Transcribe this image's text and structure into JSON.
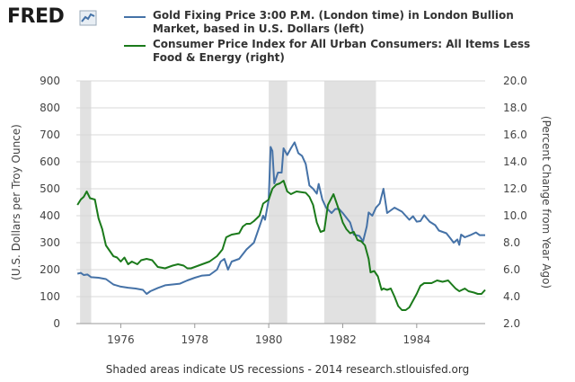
{
  "logo": {
    "text": "FRED",
    "icon": "chart-line-icon"
  },
  "footer": {
    "text": "Shaded areas indicate US recessions - 2014 research.stlouisfed.org"
  },
  "colors": {
    "gold": "#4572a7",
    "cpi": "#1b7a1b",
    "recession": "#e1e1e1",
    "grid": "#d8d8d8"
  },
  "chart_data": {
    "type": "line",
    "title": "",
    "xlabel": "",
    "x_ticks": [
      1976,
      1978,
      1980,
      1982,
      1984
    ],
    "xlim": [
      1974.8,
      1985.85
    ],
    "left_axis": {
      "label": "(U.S. Dollars per Troy Ounce)",
      "ylim": [
        0,
        900
      ],
      "ticks": [
        "0",
        "100",
        "200",
        "300",
        "400",
        "500",
        "600",
        "700",
        "800",
        "900"
      ]
    },
    "right_axis": {
      "label": "(Percent Change from Year Ago)",
      "ylim": [
        2.0,
        20.0
      ],
      "ticks": [
        "2.0",
        "4.0",
        "6.0",
        "8.0",
        "10.0",
        "12.0",
        "14.0",
        "16.0",
        "18.0",
        "20.0"
      ]
    },
    "grid": true,
    "legend_position": "top",
    "recessions": [
      [
        1974.9,
        1975.2
      ],
      [
        1980.0,
        1980.5
      ],
      [
        1981.5,
        1982.9
      ]
    ],
    "series": [
      {
        "name": "Gold Fixing Price 3:00 P.M. (London time) in London Bullion Market, based in U.S. Dollars (left)",
        "axis": "left",
        "color": "#4572a7",
        "points": [
          [
            1974.83,
            185
          ],
          [
            1974.92,
            188
          ],
          [
            1975.0,
            180
          ],
          [
            1975.1,
            182
          ],
          [
            1975.2,
            172
          ],
          [
            1975.4,
            170
          ],
          [
            1975.6,
            165
          ],
          [
            1975.8,
            145
          ],
          [
            1976.0,
            137
          ],
          [
            1976.2,
            133
          ],
          [
            1976.4,
            130
          ],
          [
            1976.6,
            125
          ],
          [
            1976.7,
            110
          ],
          [
            1976.8,
            120
          ],
          [
            1977.0,
            132
          ],
          [
            1977.2,
            142
          ],
          [
            1977.4,
            145
          ],
          [
            1977.6,
            148
          ],
          [
            1977.8,
            160
          ],
          [
            1978.0,
            170
          ],
          [
            1978.2,
            178
          ],
          [
            1978.4,
            180
          ],
          [
            1978.6,
            200
          ],
          [
            1978.7,
            230
          ],
          [
            1978.8,
            240
          ],
          [
            1978.9,
            200
          ],
          [
            1979.0,
            230
          ],
          [
            1979.2,
            240
          ],
          [
            1979.4,
            275
          ],
          [
            1979.6,
            300
          ],
          [
            1979.75,
            360
          ],
          [
            1979.85,
            400
          ],
          [
            1979.9,
            385
          ],
          [
            1980.0,
            460
          ],
          [
            1980.05,
            655
          ],
          [
            1980.1,
            640
          ],
          [
            1980.15,
            520
          ],
          [
            1980.25,
            560
          ],
          [
            1980.35,
            560
          ],
          [
            1980.4,
            650
          ],
          [
            1980.5,
            625
          ],
          [
            1980.6,
            650
          ],
          [
            1980.7,
            672
          ],
          [
            1980.8,
            632
          ],
          [
            1980.9,
            622
          ],
          [
            1981.0,
            592
          ],
          [
            1981.1,
            512
          ],
          [
            1981.2,
            500
          ],
          [
            1981.3,
            482
          ],
          [
            1981.35,
            518
          ],
          [
            1981.45,
            460
          ],
          [
            1981.55,
            430
          ],
          [
            1981.7,
            410
          ],
          [
            1981.8,
            425
          ],
          [
            1981.9,
            425
          ],
          [
            1982.0,
            410
          ],
          [
            1982.2,
            375
          ],
          [
            1982.3,
            330
          ],
          [
            1982.45,
            325
          ],
          [
            1982.55,
            305
          ],
          [
            1982.65,
            360
          ],
          [
            1982.7,
            412
          ],
          [
            1982.8,
            400
          ],
          [
            1982.9,
            430
          ],
          [
            1983.0,
            445
          ],
          [
            1983.1,
            500
          ],
          [
            1983.2,
            410
          ],
          [
            1983.4,
            430
          ],
          [
            1983.6,
            415
          ],
          [
            1983.8,
            385
          ],
          [
            1983.9,
            398
          ],
          [
            1984.0,
            378
          ],
          [
            1984.1,
            380
          ],
          [
            1984.2,
            402
          ],
          [
            1984.35,
            378
          ],
          [
            1984.5,
            365
          ],
          [
            1984.6,
            345
          ],
          [
            1984.8,
            335
          ],
          [
            1984.9,
            318
          ],
          [
            1985.0,
            300
          ],
          [
            1985.1,
            312
          ],
          [
            1985.15,
            292
          ],
          [
            1985.2,
            330
          ],
          [
            1985.3,
            320
          ],
          [
            1985.45,
            328
          ],
          [
            1985.6,
            338
          ],
          [
            1985.7,
            328
          ],
          [
            1985.85,
            328
          ]
        ]
      },
      {
        "name": "Consumer Price Index for All Urban Consumers: All Items Less Food & Energy (right)",
        "axis": "right",
        "color": "#1b7a1b",
        "points": [
          [
            1974.83,
            10.8
          ],
          [
            1974.92,
            11.2
          ],
          [
            1975.0,
            11.4
          ],
          [
            1975.08,
            11.8
          ],
          [
            1975.17,
            11.3
          ],
          [
            1975.3,
            11.2
          ],
          [
            1975.4,
            9.8
          ],
          [
            1975.5,
            9.0
          ],
          [
            1975.6,
            7.8
          ],
          [
            1975.8,
            7.0
          ],
          [
            1975.9,
            6.9
          ],
          [
            1976.0,
            6.6
          ],
          [
            1976.1,
            6.9
          ],
          [
            1976.2,
            6.4
          ],
          [
            1976.3,
            6.6
          ],
          [
            1976.45,
            6.4
          ],
          [
            1976.55,
            6.7
          ],
          [
            1976.7,
            6.8
          ],
          [
            1976.85,
            6.7
          ],
          [
            1977.0,
            6.2
          ],
          [
            1977.2,
            6.1
          ],
          [
            1977.4,
            6.3
          ],
          [
            1977.55,
            6.4
          ],
          [
            1977.7,
            6.3
          ],
          [
            1977.8,
            6.1
          ],
          [
            1977.9,
            6.1
          ],
          [
            1978.0,
            6.2
          ],
          [
            1978.2,
            6.4
          ],
          [
            1978.4,
            6.6
          ],
          [
            1978.6,
            7.0
          ],
          [
            1978.75,
            7.5
          ],
          [
            1978.85,
            8.4
          ],
          [
            1979.0,
            8.6
          ],
          [
            1979.2,
            8.7
          ],
          [
            1979.3,
            9.2
          ],
          [
            1979.4,
            9.4
          ],
          [
            1979.5,
            9.4
          ],
          [
            1979.6,
            9.6
          ],
          [
            1979.75,
            10.0
          ],
          [
            1979.85,
            10.9
          ],
          [
            1980.0,
            11.2
          ],
          [
            1980.1,
            12.0
          ],
          [
            1980.2,
            12.3
          ],
          [
            1980.3,
            12.4
          ],
          [
            1980.4,
            12.6
          ],
          [
            1980.5,
            11.8
          ],
          [
            1980.6,
            11.6
          ],
          [
            1980.75,
            11.8
          ],
          [
            1981.0,
            11.7
          ],
          [
            1981.1,
            11.4
          ],
          [
            1981.2,
            10.8
          ],
          [
            1981.3,
            9.5
          ],
          [
            1981.4,
            8.8
          ],
          [
            1981.5,
            8.9
          ],
          [
            1981.6,
            10.8
          ],
          [
            1981.75,
            11.6
          ],
          [
            1981.9,
            10.4
          ],
          [
            1982.0,
            9.5
          ],
          [
            1982.1,
            9.0
          ],
          [
            1982.2,
            8.7
          ],
          [
            1982.3,
            8.8
          ],
          [
            1982.4,
            8.2
          ],
          [
            1982.5,
            8.1
          ],
          [
            1982.6,
            7.8
          ],
          [
            1982.7,
            6.8
          ],
          [
            1982.75,
            5.8
          ],
          [
            1982.85,
            5.9
          ],
          [
            1982.95,
            5.5
          ],
          [
            1983.05,
            4.5
          ],
          [
            1983.1,
            4.6
          ],
          [
            1983.2,
            4.5
          ],
          [
            1983.3,
            4.6
          ],
          [
            1983.4,
            4.0
          ],
          [
            1983.5,
            3.3
          ],
          [
            1983.6,
            3.0
          ],
          [
            1983.7,
            3.0
          ],
          [
            1983.8,
            3.2
          ],
          [
            1983.9,
            3.7
          ],
          [
            1984.0,
            4.2
          ],
          [
            1984.1,
            4.8
          ],
          [
            1984.2,
            5.0
          ],
          [
            1984.4,
            5.0
          ],
          [
            1984.55,
            5.2
          ],
          [
            1984.7,
            5.1
          ],
          [
            1984.85,
            5.2
          ],
          [
            1984.95,
            4.9
          ],
          [
            1985.05,
            4.6
          ],
          [
            1985.15,
            4.4
          ],
          [
            1985.3,
            4.6
          ],
          [
            1985.4,
            4.4
          ],
          [
            1985.55,
            4.3
          ],
          [
            1985.65,
            4.2
          ],
          [
            1985.75,
            4.2
          ],
          [
            1985.85,
            4.5
          ]
        ]
      }
    ]
  }
}
